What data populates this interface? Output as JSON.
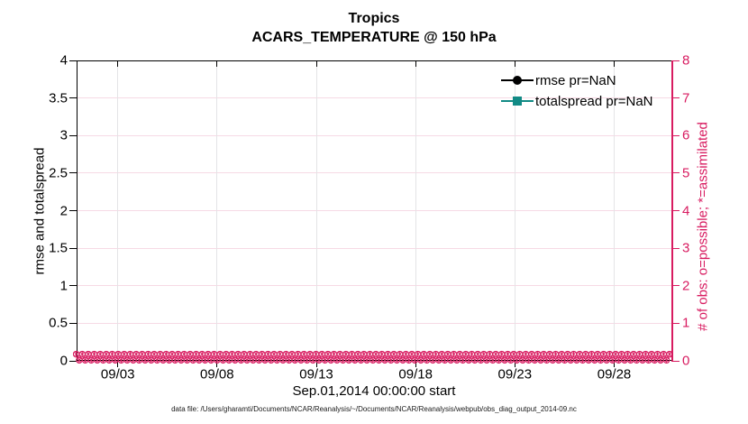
{
  "title": {
    "region": "Tropics",
    "subtitle": "ACARS_TEMPERATURE @ 150 hPa"
  },
  "legend": {
    "items": [
      {
        "label": "rmse pr=NaN",
        "color": "#000000",
        "marker": "circle"
      },
      {
        "label": "totalspread pr=NaN",
        "color": "#118A85",
        "marker": "square"
      }
    ]
  },
  "axes": {
    "left": {
      "label": "rmse and totalspread",
      "color": "#000000",
      "ticks": [
        "0",
        "0.5",
        "1",
        "1.5",
        "2",
        "2.5",
        "3",
        "3.5",
        "4"
      ]
    },
    "right": {
      "label": "# of obs: o=possible; *=assimilated",
      "color": "#D81B60",
      "ticks": [
        "0",
        "1",
        "2",
        "3",
        "4",
        "5",
        "6",
        "7",
        "8"
      ]
    },
    "x": {
      "label": "Sep.01,2014 00:00:00 start",
      "ticks": [
        "09/03",
        "09/08",
        "09/13",
        "09/18",
        "09/23",
        "09/28"
      ]
    }
  },
  "caption": "data file: /Users/gharamti/Documents/NCAR/Reanalysis/~/Documents/NCAR/Reanalysis/webpub/obs_diag_output_2014-09.nc",
  "colors": {
    "accent_pink": "#D81B60",
    "teal": "#118A85",
    "grid_vertical": "#E4E4E6",
    "grid_horizontal": "#F6DAE5"
  },
  "chart_data": {
    "type": "line",
    "title": "Tropics",
    "subtitle": "ACARS_TEMPERATURE @ 150 hPa",
    "xlabel": "Sep.01,2014 00:00:00 start",
    "x_tick_labels": [
      "09/03",
      "09/08",
      "09/13",
      "09/18",
      "09/23",
      "09/28"
    ],
    "x_range_days": [
      "2014-09-01 00:00:00",
      "2014-10-01 00:00:00"
    ],
    "left_axis": {
      "label": "rmse and totalspread",
      "range": [
        0,
        4
      ],
      "tick_step": 0.5
    },
    "right_axis": {
      "label": "# of obs: o=possible; *=assimilated",
      "range": [
        0,
        8
      ],
      "tick_step": 1
    },
    "grid": true,
    "legend_position": "upper-right-inside",
    "series": [
      {
        "name": "rmse pr=NaN",
        "axis": "left",
        "color": "#000000",
        "marker": "filled-circle",
        "line": "solid",
        "values": [],
        "note": "pr=NaN, no curve drawn"
      },
      {
        "name": "totalspread pr=NaN",
        "axis": "left",
        "color": "#118A85",
        "marker": "filled-square",
        "line": "solid",
        "values": [],
        "note": "pr=NaN, no curve drawn"
      },
      {
        "name": "# of obs possible (o)",
        "axis": "right",
        "color": "#D81B60",
        "marker": "o",
        "constant_value": 0,
        "n_times": 120
      },
      {
        "name": "# of obs assimilated (*)",
        "axis": "right",
        "color": "#D81B60",
        "marker": "*",
        "constant_value": 0,
        "n_times": 120
      }
    ]
  }
}
